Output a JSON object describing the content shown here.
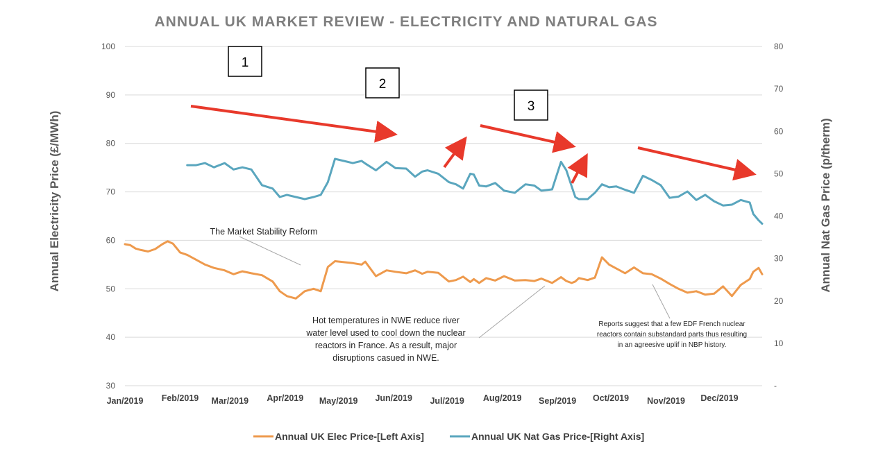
{
  "chart_data": {
    "type": "line",
    "title": "ANNUAL UK MARKET REVIEW - ELECTRICITY AND NATURAL GAS",
    "ylabel_left": "Annual Electricity Price (£/MWh)",
    "ylabel_right": "Annual Nat Gas Price (p/therm)",
    "ylim_left": [
      30,
      100
    ],
    "ylim_right": [
      0,
      80
    ],
    "yticks_left": [
      "30",
      "40",
      "50",
      "60",
      "70",
      "80",
      "90",
      "100"
    ],
    "yticks_right": [
      "-",
      "10",
      "20",
      "30",
      "40",
      "50",
      "60",
      "70",
      "80"
    ],
    "x_tick_labels": [
      "Jan/2019",
      "Feb/2019",
      "Mar/2019",
      "Apr/2019",
      "May/2019",
      "Jun/2019",
      "Jul/2019",
      "Aug/2019",
      "Sep/2019",
      "Oct/2019",
      "Nov/2019",
      "Dec/2019"
    ],
    "grid": "horizontal",
    "legend_position": "bottom",
    "series": [
      {
        "name": "Annual UK Elec Price-[Left Axis]",
        "axis": "left",
        "color": "#EE9A4D",
        "x": [
          "2019-01-01",
          "2019-01-04",
          "2019-01-07",
          "2019-01-10",
          "2019-01-14",
          "2019-01-18",
          "2019-01-22",
          "2019-01-25",
          "2019-01-28",
          "2019-02-01",
          "2019-02-05",
          "2019-02-10",
          "2019-02-15",
          "2019-02-20",
          "2019-02-26",
          "2019-03-03",
          "2019-03-08",
          "2019-03-13",
          "2019-03-19",
          "2019-03-25",
          "2019-03-29",
          "2019-04-02",
          "2019-04-07",
          "2019-04-12",
          "2019-04-17",
          "2019-04-21",
          "2019-04-25",
          "2019-04-29",
          "2019-05-04",
          "2019-05-09",
          "2019-05-14",
          "2019-05-16",
          "2019-05-22",
          "2019-05-28",
          "2019-06-02",
          "2019-06-08",
          "2019-06-13",
          "2019-06-17",
          "2019-06-20",
          "2019-06-26",
          "2019-07-02",
          "2019-07-06",
          "2019-07-10",
          "2019-07-14",
          "2019-07-16",
          "2019-07-19",
          "2019-07-23",
          "2019-07-28",
          "2019-08-02",
          "2019-08-08",
          "2019-08-14",
          "2019-08-19",
          "2019-08-23",
          "2019-08-29",
          "2019-09-03",
          "2019-09-06",
          "2019-09-09",
          "2019-09-11",
          "2019-09-13",
          "2019-09-18",
          "2019-09-22",
          "2019-09-26",
          "2019-09-30",
          "2019-10-04",
          "2019-10-09",
          "2019-10-14",
          "2019-10-19",
          "2019-10-24",
          "2019-10-29",
          "2019-11-03",
          "2019-11-08",
          "2019-11-13",
          "2019-11-18",
          "2019-11-23",
          "2019-11-28",
          "2019-12-03",
          "2019-12-08",
          "2019-12-13",
          "2019-12-18",
          "2019-12-20",
          "2019-12-23",
          "2019-12-25"
        ],
        "values": [
          59.2,
          59.0,
          58.3,
          58.0,
          57.7,
          58.2,
          59.2,
          59.8,
          59.3,
          57.5,
          57.0,
          56.0,
          55.0,
          54.3,
          53.8,
          53.0,
          53.6,
          53.2,
          52.8,
          51.5,
          49.5,
          48.5,
          48.0,
          49.5,
          50.0,
          49.5,
          54.5,
          55.7,
          55.5,
          55.3,
          55.0,
          55.6,
          52.6,
          53.8,
          53.5,
          53.2,
          53.8,
          53.1,
          53.5,
          53.3,
          51.5,
          51.8,
          52.5,
          51.4,
          52.0,
          51.2,
          52.2,
          51.7,
          52.6,
          51.7,
          51.8,
          51.6,
          52.1,
          51.2,
          52.4,
          51.6,
          51.2,
          51.5,
          52.2,
          51.8,
          52.3,
          56.5,
          55.0,
          54.2,
          53.2,
          54.4,
          53.2,
          53.0,
          52.1,
          51.0,
          50.0,
          49.2,
          49.5,
          48.8,
          49.0,
          50.5,
          48.5,
          50.8,
          52.0,
          53.5,
          54.3,
          53.0
        ]
      },
      {
        "name": "Annual UK Nat Gas  Price-[Right Axis]",
        "axis": "right",
        "color": "#5AA6BE",
        "x": [
          "2019-02-05",
          "2019-02-10",
          "2019-02-15",
          "2019-02-20",
          "2019-02-26",
          "2019-03-03",
          "2019-03-08",
          "2019-03-13",
          "2019-03-19",
          "2019-03-25",
          "2019-03-29",
          "2019-04-02",
          "2019-04-07",
          "2019-04-12",
          "2019-04-17",
          "2019-04-21",
          "2019-04-25",
          "2019-04-29",
          "2019-05-04",
          "2019-05-09",
          "2019-05-14",
          "2019-05-16",
          "2019-05-22",
          "2019-05-28",
          "2019-06-02",
          "2019-06-08",
          "2019-06-13",
          "2019-06-17",
          "2019-06-20",
          "2019-06-26",
          "2019-07-02",
          "2019-07-06",
          "2019-07-10",
          "2019-07-14",
          "2019-07-16",
          "2019-07-19",
          "2019-07-23",
          "2019-07-28",
          "2019-08-02",
          "2019-08-08",
          "2019-08-14",
          "2019-08-19",
          "2019-08-23",
          "2019-08-29",
          "2019-09-03",
          "2019-09-06",
          "2019-09-09",
          "2019-09-11",
          "2019-09-13",
          "2019-09-18",
          "2019-09-22",
          "2019-09-26",
          "2019-09-30",
          "2019-10-04",
          "2019-10-09",
          "2019-10-14",
          "2019-10-19",
          "2019-10-24",
          "2019-10-29",
          "2019-11-03",
          "2019-11-08",
          "2019-11-13",
          "2019-11-18",
          "2019-11-23",
          "2019-11-28",
          "2019-12-03",
          "2019-12-08",
          "2019-12-13",
          "2019-12-18",
          "2019-12-20",
          "2019-12-23",
          "2019-12-25"
        ],
        "values": [
          52.0,
          52.0,
          52.5,
          51.5,
          52.5,
          51.0,
          51.5,
          51.0,
          47.3,
          46.5,
          44.5,
          45.0,
          44.5,
          44.0,
          44.5,
          45.0,
          48.0,
          53.5,
          53.0,
          52.5,
          53.0,
          52.4,
          50.8,
          52.8,
          51.3,
          51.2,
          49.3,
          50.5,
          50.8,
          50.0,
          48.0,
          47.5,
          46.5,
          50.0,
          49.8,
          47.2,
          47.0,
          47.8,
          46.0,
          45.5,
          47.5,
          47.2,
          46.0,
          46.3,
          52.8,
          50.8,
          47.0,
          44.5,
          44.0,
          44.0,
          45.5,
          47.5,
          46.8,
          47.0,
          46.2,
          45.5,
          49.5,
          48.5,
          47.3,
          44.3,
          44.6,
          45.8,
          43.8,
          45.0,
          43.5,
          42.5,
          42.7,
          43.8,
          43.2,
          40.5,
          39.0,
          38.2
        ]
      }
    ],
    "annotations": {
      "market_stability": "The Market Stability Reform",
      "hot_temps": [
        "Hot temperatures in NWE reduce river",
        "water level used  to cool down the  nuclear",
        "reactors in France. As a result, major",
        "disruptions casued in NWE."
      ],
      "edf_reports": [
        "Reports suggest that a few EDF French nuclear",
        "reactors contain substandard parts thus resulting",
        "in an agreesive uplif in NBP history."
      ],
      "boxes": [
        "1",
        "2",
        "3"
      ]
    }
  },
  "colors": {
    "elec": "#EE9A4D",
    "gas": "#5AA6BE",
    "arrow": "#E8392B",
    "grid": "#D9D9D9"
  }
}
